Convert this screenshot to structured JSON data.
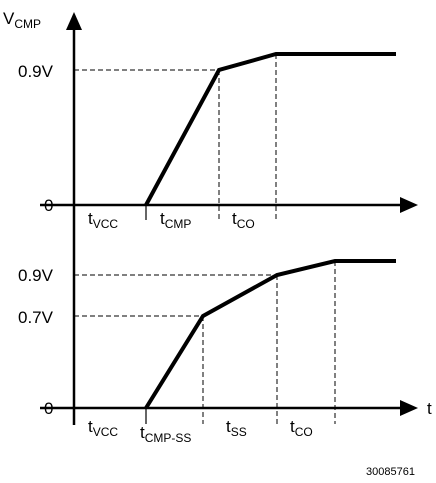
{
  "top": {
    "y_axis_main": "V",
    "y_axis_sub": "CMP",
    "y_tick_high": "0.9V",
    "y_tick_zero": "0",
    "intervals": [
      {
        "main": "t",
        "sub": "VCC"
      },
      {
        "main": "t",
        "sub": "CMP"
      },
      {
        "main": "t",
        "sub": "CO"
      }
    ]
  },
  "bottom": {
    "y_tick_high": "0.9V",
    "y_tick_mid": "0.7V",
    "y_tick_zero": "0",
    "x_axis_label": "t",
    "intervals": [
      {
        "main": "t",
        "sub": "VCC"
      },
      {
        "main": "t",
        "sub": "CMP-SS"
      },
      {
        "main": "t",
        "sub": "SS"
      },
      {
        "main": "t",
        "sub": "CO"
      }
    ]
  },
  "figure_id": "30085761"
}
